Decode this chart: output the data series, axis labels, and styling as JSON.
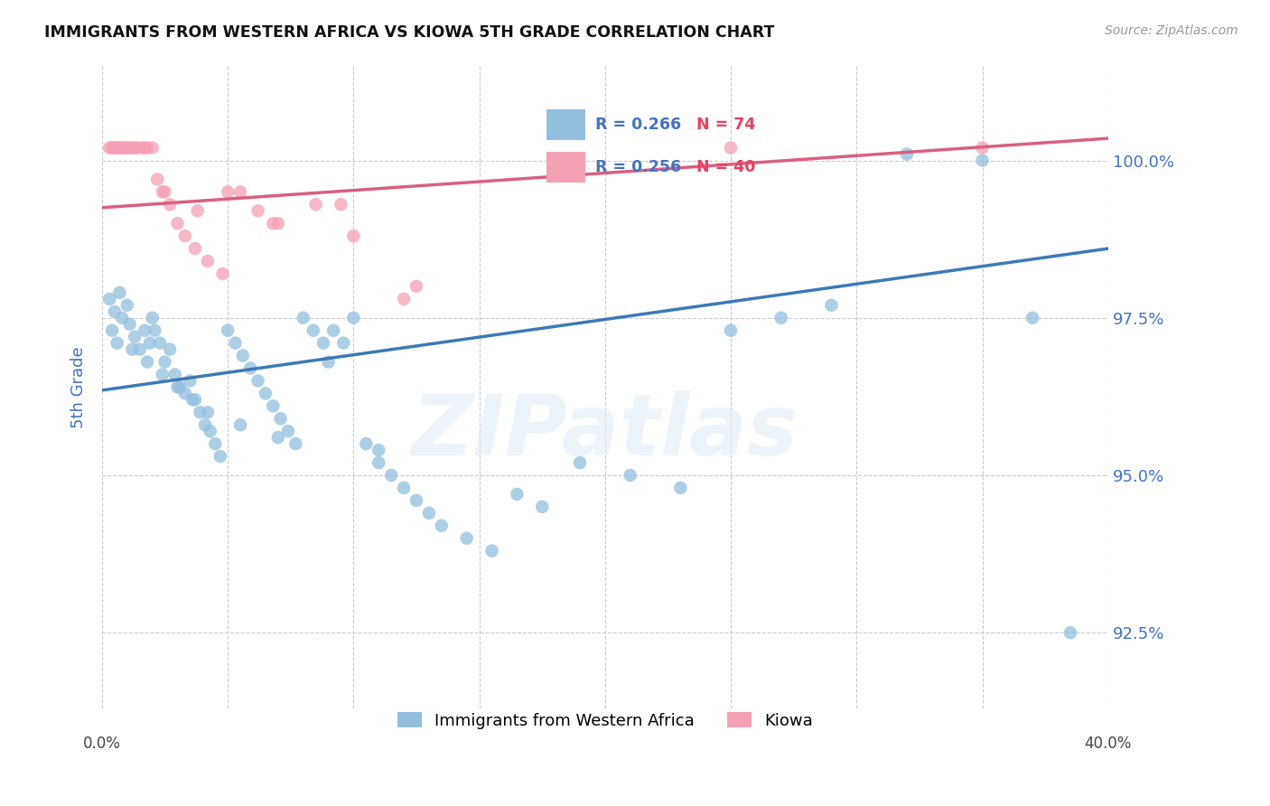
{
  "title": "IMMIGRANTS FROM WESTERN AFRICA VS KIOWA 5TH GRADE CORRELATION CHART",
  "source": "Source: ZipAtlas.com",
  "ylabel": "5th Grade",
  "xlim": [
    0.0,
    40.0
  ],
  "ylim": [
    91.3,
    101.5
  ],
  "yticks": [
    92.5,
    95.0,
    97.5,
    100.0
  ],
  "ytick_labels": [
    "92.5%",
    "95.0%",
    "97.5%",
    "100.0%"
  ],
  "xticks": [
    0.0,
    5.0,
    10.0,
    15.0,
    20.0,
    25.0,
    30.0,
    35.0,
    40.0
  ],
  "background_color": "#ffffff",
  "blue_color": "#92bfde",
  "pink_color": "#f4a0b5",
  "blue_line_color": "#3d7ab5",
  "pink_line_color": "#d96080",
  "legend_blue_R": "R = 0.266",
  "legend_blue_N": "N = 74",
  "legend_pink_R": "R = 0.256",
  "legend_pink_N": "N = 40",
  "blue_scatter_x": [
    0.3,
    0.5,
    0.7,
    0.8,
    1.0,
    1.1,
    1.3,
    1.5,
    1.7,
    1.9,
    2.0,
    2.1,
    2.3,
    2.5,
    2.7,
    2.9,
    3.1,
    3.3,
    3.5,
    3.7,
    3.9,
    4.1,
    4.3,
    4.5,
    4.7,
    5.0,
    5.3,
    5.6,
    5.9,
    6.2,
    6.5,
    6.8,
    7.1,
    7.4,
    7.7,
    8.0,
    8.4,
    8.8,
    9.2,
    9.6,
    10.0,
    10.5,
    11.0,
    11.5,
    12.0,
    12.5,
    13.0,
    13.5,
    14.5,
    15.5,
    16.5,
    17.5,
    19.0,
    21.0,
    23.0,
    25.0,
    27.0,
    29.0,
    32.0,
    35.0,
    37.0,
    38.5,
    0.4,
    0.6,
    1.2,
    1.8,
    2.4,
    3.0,
    3.6,
    4.2,
    5.5,
    7.0,
    9.0,
    11.0
  ],
  "blue_scatter_y": [
    97.8,
    97.6,
    97.9,
    97.5,
    97.7,
    97.4,
    97.2,
    97.0,
    97.3,
    97.1,
    97.5,
    97.3,
    97.1,
    96.8,
    97.0,
    96.6,
    96.4,
    96.3,
    96.5,
    96.2,
    96.0,
    95.8,
    95.7,
    95.5,
    95.3,
    97.3,
    97.1,
    96.9,
    96.7,
    96.5,
    96.3,
    96.1,
    95.9,
    95.7,
    95.5,
    97.5,
    97.3,
    97.1,
    97.3,
    97.1,
    97.5,
    95.5,
    95.2,
    95.0,
    94.8,
    94.6,
    94.4,
    94.2,
    94.0,
    93.8,
    94.7,
    94.5,
    95.2,
    95.0,
    94.8,
    97.3,
    97.5,
    97.7,
    100.1,
    100.0,
    97.5,
    92.5,
    97.3,
    97.1,
    97.0,
    96.8,
    96.6,
    96.4,
    96.2,
    96.0,
    95.8,
    95.6,
    96.8,
    95.4
  ],
  "pink_scatter_x": [
    0.3,
    0.5,
    0.6,
    0.7,
    0.8,
    0.9,
    1.0,
    1.1,
    1.2,
    1.4,
    1.6,
    1.8,
    2.0,
    2.2,
    2.4,
    2.7,
    3.0,
    3.3,
    3.7,
    4.2,
    4.8,
    5.5,
    6.2,
    7.0,
    8.5,
    10.0,
    12.5,
    0.4,
    0.6,
    0.8,
    1.3,
    1.7,
    2.5,
    3.8,
    5.0,
    6.8,
    9.5,
    12.0,
    25.0,
    35.0
  ],
  "pink_scatter_y": [
    100.2,
    100.2,
    100.2,
    100.2,
    100.2,
    100.2,
    100.2,
    100.2,
    100.2,
    100.2,
    100.2,
    100.2,
    100.2,
    99.7,
    99.5,
    99.3,
    99.0,
    98.8,
    98.6,
    98.4,
    98.2,
    99.5,
    99.2,
    99.0,
    99.3,
    98.8,
    98.0,
    100.2,
    100.2,
    100.2,
    100.2,
    100.2,
    99.5,
    99.2,
    99.5,
    99.0,
    99.3,
    97.8,
    100.2,
    100.2
  ],
  "blue_line_y0": 96.35,
  "blue_line_y1": 98.6,
  "pink_line_y0": 99.25,
  "pink_line_y1": 100.35,
  "watermark": "ZIPatlas",
  "legend_label_blue": "Immigrants from Western Africa",
  "legend_label_pink": "Kiowa"
}
